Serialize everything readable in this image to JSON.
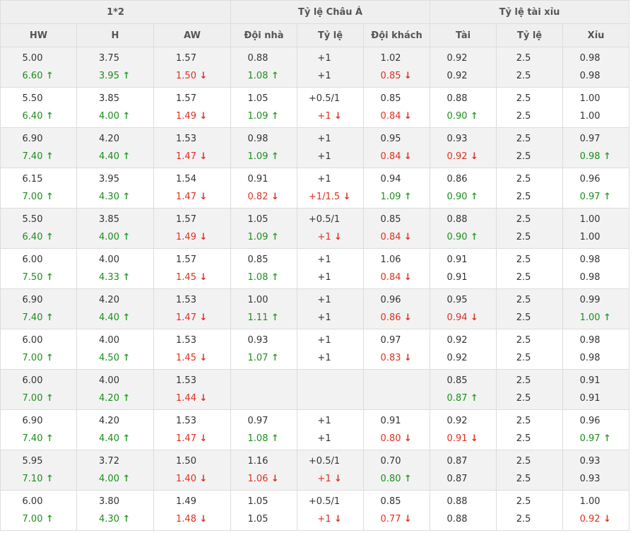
{
  "header": {
    "groups": [
      "1*2",
      "Tỷ lệ Châu Á",
      "Tỷ lệ tài xỉu"
    ],
    "columns": [
      "HW",
      "H",
      "AW",
      "Đội nhà",
      "Tỷ lệ",
      "Đội khách",
      "Tài",
      "Tỷ lệ",
      "Xỉu"
    ]
  },
  "icons": {
    "up": "↑",
    "down": "↓",
    "up_name": "arrow-up-icon",
    "down_name": "arrow-down-icon"
  },
  "colors": {
    "up": "#1a8f1a",
    "down": "#e03020",
    "header_bg": "#efefef",
    "row_shade": "#f2f2f2"
  },
  "rows": [
    [
      [
        "5.00",
        "6.60",
        "up"
      ],
      [
        "3.75",
        "3.95",
        "up"
      ],
      [
        "1.57",
        "1.50",
        "down"
      ],
      [
        "0.88",
        "1.08",
        "up"
      ],
      [
        "+1",
        "+1",
        ""
      ],
      [
        "1.02",
        "0.85",
        "down"
      ],
      [
        "0.92",
        "0.92",
        ""
      ],
      [
        "2.5",
        "2.5",
        ""
      ],
      [
        "0.98",
        "0.98",
        ""
      ]
    ],
    [
      [
        "5.50",
        "6.40",
        "up"
      ],
      [
        "3.85",
        "4.00",
        "up"
      ],
      [
        "1.57",
        "1.49",
        "down"
      ],
      [
        "1.05",
        "1.09",
        "up"
      ],
      [
        "+0.5/1",
        "+1",
        "down"
      ],
      [
        "0.85",
        "0.84",
        "down"
      ],
      [
        "0.88",
        "0.90",
        "up"
      ],
      [
        "2.5",
        "2.5",
        ""
      ],
      [
        "1.00",
        "1.00",
        ""
      ]
    ],
    [
      [
        "6.90",
        "7.40",
        "up"
      ],
      [
        "4.20",
        "4.40",
        "up"
      ],
      [
        "1.53",
        "1.47",
        "down"
      ],
      [
        "0.98",
        "1.09",
        "up"
      ],
      [
        "+1",
        "+1",
        ""
      ],
      [
        "0.95",
        "0.84",
        "down"
      ],
      [
        "0.93",
        "0.92",
        "down"
      ],
      [
        "2.5",
        "2.5",
        ""
      ],
      [
        "0.97",
        "0.98",
        "up"
      ]
    ],
    [
      [
        "6.15",
        "7.00",
        "up"
      ],
      [
        "3.95",
        "4.30",
        "up"
      ],
      [
        "1.54",
        "1.47",
        "down"
      ],
      [
        "0.91",
        "0.82",
        "down"
      ],
      [
        "+1",
        "+1/1.5",
        "down"
      ],
      [
        "0.94",
        "1.09",
        "up"
      ],
      [
        "0.86",
        "0.90",
        "up"
      ],
      [
        "2.5",
        "2.5",
        ""
      ],
      [
        "0.96",
        "0.97",
        "up"
      ]
    ],
    [
      [
        "5.50",
        "6.40",
        "up"
      ],
      [
        "3.85",
        "4.00",
        "up"
      ],
      [
        "1.57",
        "1.49",
        "down"
      ],
      [
        "1.05",
        "1.09",
        "up"
      ],
      [
        "+0.5/1",
        "+1",
        "down"
      ],
      [
        "0.85",
        "0.84",
        "down"
      ],
      [
        "0.88",
        "0.90",
        "up"
      ],
      [
        "2.5",
        "2.5",
        ""
      ],
      [
        "1.00",
        "1.00",
        ""
      ]
    ],
    [
      [
        "6.00",
        "7.50",
        "up"
      ],
      [
        "4.00",
        "4.33",
        "up"
      ],
      [
        "1.57",
        "1.45",
        "down"
      ],
      [
        "0.85",
        "1.08",
        "up"
      ],
      [
        "+1",
        "+1",
        ""
      ],
      [
        "1.06",
        "0.84",
        "down"
      ],
      [
        "0.91",
        "0.91",
        ""
      ],
      [
        "2.5",
        "2.5",
        ""
      ],
      [
        "0.98",
        "0.98",
        ""
      ]
    ],
    [
      [
        "6.90",
        "7.40",
        "up"
      ],
      [
        "4.20",
        "4.40",
        "up"
      ],
      [
        "1.53",
        "1.47",
        "down"
      ],
      [
        "1.00",
        "1.11",
        "up"
      ],
      [
        "+1",
        "+1",
        ""
      ],
      [
        "0.96",
        "0.86",
        "down"
      ],
      [
        "0.95",
        "0.94",
        "down"
      ],
      [
        "2.5",
        "2.5",
        ""
      ],
      [
        "0.99",
        "1.00",
        "up"
      ]
    ],
    [
      [
        "6.00",
        "7.00",
        "up"
      ],
      [
        "4.00",
        "4.50",
        "up"
      ],
      [
        "1.53",
        "1.45",
        "down"
      ],
      [
        "0.93",
        "1.07",
        "up"
      ],
      [
        "+1",
        "+1",
        ""
      ],
      [
        "0.97",
        "0.83",
        "down"
      ],
      [
        "0.92",
        "0.92",
        ""
      ],
      [
        "2.5",
        "2.5",
        ""
      ],
      [
        "0.98",
        "0.98",
        ""
      ]
    ],
    [
      [
        "6.00",
        "7.00",
        "up"
      ],
      [
        "4.00",
        "4.20",
        "up"
      ],
      [
        "1.53",
        "1.44",
        "down"
      ],
      [
        "",
        "",
        ""
      ],
      [
        "",
        "",
        ""
      ],
      [
        "",
        "",
        ""
      ],
      [
        "0.85",
        "0.87",
        "up"
      ],
      [
        "2.5",
        "2.5",
        ""
      ],
      [
        "0.91",
        "0.91",
        ""
      ]
    ],
    [
      [
        "6.90",
        "7.40",
        "up"
      ],
      [
        "4.20",
        "4.40",
        "up"
      ],
      [
        "1.53",
        "1.47",
        "down"
      ],
      [
        "0.97",
        "1.08",
        "up"
      ],
      [
        "+1",
        "+1",
        ""
      ],
      [
        "0.91",
        "0.80",
        "down"
      ],
      [
        "0.92",
        "0.91",
        "down"
      ],
      [
        "2.5",
        "2.5",
        ""
      ],
      [
        "0.96",
        "0.97",
        "up"
      ]
    ],
    [
      [
        "5.95",
        "7.10",
        "up"
      ],
      [
        "3.72",
        "4.00",
        "up"
      ],
      [
        "1.50",
        "1.40",
        "down"
      ],
      [
        "1.16",
        "1.06",
        "down"
      ],
      [
        "+0.5/1",
        "+1",
        "down"
      ],
      [
        "0.70",
        "0.80",
        "up"
      ],
      [
        "0.87",
        "0.87",
        ""
      ],
      [
        "2.5",
        "2.5",
        ""
      ],
      [
        "0.93",
        "0.93",
        ""
      ]
    ],
    [
      [
        "6.00",
        "7.00",
        "up"
      ],
      [
        "3.80",
        "4.30",
        "up"
      ],
      [
        "1.49",
        "1.48",
        "down"
      ],
      [
        "1.05",
        "1.05",
        ""
      ],
      [
        "+0.5/1",
        "+1",
        "down"
      ],
      [
        "0.85",
        "0.77",
        "down"
      ],
      [
        "0.88",
        "0.88",
        ""
      ],
      [
        "2.5",
        "2.5",
        ""
      ],
      [
        "1.00",
        "0.92",
        "down"
      ]
    ]
  ]
}
